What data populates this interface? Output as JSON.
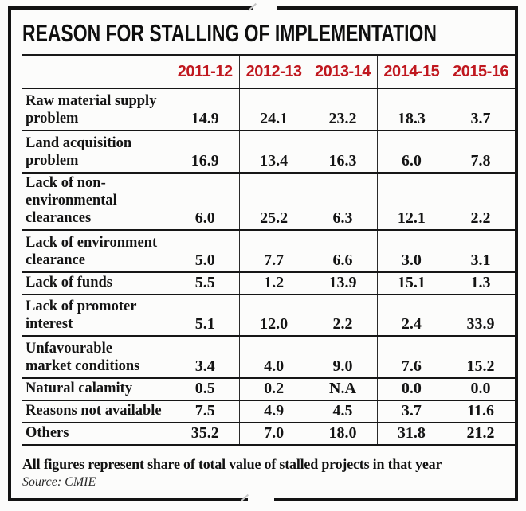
{
  "title": "REASON FOR STALLING OF IMPLEMENTATION",
  "colors": {
    "accent_red": "#c0181f",
    "ink": "#141414"
  },
  "chart_data": {
    "type": "table",
    "title": "REASON FOR STALLING OF IMPLEMENTATION",
    "columns": [
      "2011-12",
      "2012-13",
      "2013-14",
      "2014-15",
      "2015-16"
    ],
    "rows": [
      {
        "label": "Raw material supply problem",
        "values": [
          "14.9",
          "24.1",
          "23.2",
          "18.3",
          "3.7"
        ]
      },
      {
        "label": "Land acquisition problem",
        "values": [
          "16.9",
          "13.4",
          "16.3",
          "6.0",
          "7.8"
        ]
      },
      {
        "label": "Lack of non-environmental clearances",
        "values": [
          "6.0",
          "25.2",
          "6.3",
          "12.1",
          "2.2"
        ]
      },
      {
        "label": "Lack of environment clearance",
        "values": [
          "5.0",
          "7.7",
          "6.6",
          "3.0",
          "3.1"
        ]
      },
      {
        "label": "Lack of funds",
        "values": [
          "5.5",
          "1.2",
          "13.9",
          "15.1",
          "1.3"
        ]
      },
      {
        "label": "Lack of promoter interest",
        "values": [
          "5.1",
          "12.0",
          "2.2",
          "2.4",
          "33.9"
        ]
      },
      {
        "label": "Unfavourable market conditions",
        "values": [
          "3.4",
          "4.0",
          "9.0",
          "7.6",
          "15.2"
        ]
      },
      {
        "label": "Natural calamity",
        "values": [
          "0.5",
          "0.2",
          "N.A",
          "0.0",
          "0.0"
        ]
      },
      {
        "label": "Reasons not available",
        "values": [
          "7.5",
          "4.9",
          "4.5",
          "3.7",
          "11.6"
        ]
      },
      {
        "label": "Others",
        "values": [
          "35.2",
          "7.0",
          "18.0",
          "31.8",
          "21.2"
        ]
      }
    ],
    "footnote": "All figures represent share of total value of stalled projects in that year",
    "source": "Source: CMIE"
  }
}
